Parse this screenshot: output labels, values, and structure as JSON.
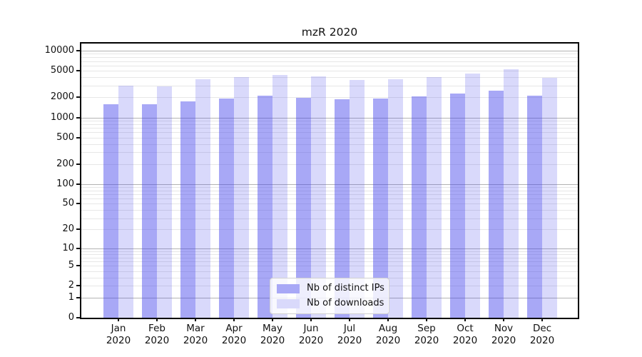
{
  "title": "mzR 2020",
  "colors": {
    "ips_bar": "rgba(65,65,235,0.46)",
    "downloads_bar": "rgba(65,65,235,0.20)",
    "ips_swatch": "#a8a8f6",
    "downloads_swatch": "#d9d9fb",
    "major_grid": "#b3b3b3",
    "minor_grid": "#e7e7e7",
    "axis": "#000000"
  },
  "legend": {
    "items": [
      {
        "label": "Nb of distinct IPs",
        "color_key": "ips_swatch"
      },
      {
        "label": "Nb of downloads",
        "color_key": "downloads_swatch"
      }
    ]
  },
  "y_axis": {
    "ticks": [
      {
        "label": "10000",
        "value": 10000
      },
      {
        "label": "5000",
        "value": 5000
      },
      {
        "label": "2000",
        "value": 2000
      },
      {
        "label": "1000",
        "value": 1000
      },
      {
        "label": "500",
        "value": 500
      },
      {
        "label": "200",
        "value": 200
      },
      {
        "label": "100",
        "value": 100
      },
      {
        "label": "50",
        "value": 50
      },
      {
        "label": "20",
        "value": 20
      },
      {
        "label": "10",
        "value": 10
      },
      {
        "label": "5",
        "value": 5
      },
      {
        "label": "2",
        "value": 2
      },
      {
        "label": "1",
        "value": 1
      },
      {
        "label": "0",
        "value": 0
      }
    ]
  },
  "x_axis": {
    "months": [
      "Jan",
      "Feb",
      "Mar",
      "Apr",
      "May",
      "Jun",
      "Jul",
      "Aug",
      "Sep",
      "Oct",
      "Nov",
      "Dec"
    ],
    "year": "2020"
  },
  "chart_data": {
    "type": "bar",
    "title": "mzR 2020",
    "categories": [
      "Jan 2020",
      "Feb 2020",
      "Mar 2020",
      "Apr 2020",
      "May 2020",
      "Jun 2020",
      "Jul 2020",
      "Aug 2020",
      "Sep 2020",
      "Oct 2020",
      "Nov 2020",
      "Dec 2020"
    ],
    "series": [
      {
        "name": "Nb of distinct IPs",
        "values": [
          1570,
          1570,
          1750,
          1910,
          2110,
          1990,
          1890,
          1940,
          2050,
          2260,
          2520,
          2110
        ]
      },
      {
        "name": "Nb of downloads",
        "values": [
          3020,
          2950,
          3770,
          4060,
          4310,
          4130,
          3620,
          3770,
          4030,
          4590,
          5320,
          3900
        ]
      }
    ],
    "xlabel": "",
    "ylabel": "",
    "yscale": "log1p",
    "ylim": [
      0,
      13700
    ],
    "grid": true,
    "legend_position": "lower center"
  }
}
